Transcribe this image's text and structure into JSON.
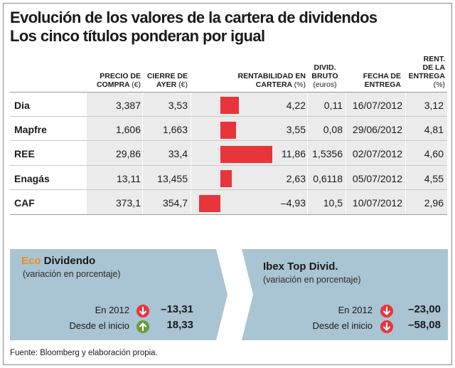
{
  "title_line1": "Evolución de los valores de la cartera de dividendos",
  "title_line2": "Los cinco títulos ponderan por igual",
  "headers": {
    "precio_line1": "PRECIO DE",
    "precio_line2": "COMPRA",
    "precio_unit": "(€)",
    "cierre_line1": "CIERRE DE",
    "cierre_line2": "AYER",
    "cierre_unit": "(€)",
    "rent_line1": "RENTABILIDAD EN",
    "rent_line2": "CARTERA",
    "rent_unit": "(%)",
    "divid_line1": "DIVID.",
    "divid_line2": "BRUTO",
    "divid_unit": "(euros)",
    "fecha_line1": "FECHA DE",
    "fecha_line2": "ENTREGA",
    "rentent_line1": "RENT.",
    "rentent_line2": "DE LA",
    "rentent_line3": "ENTREGA",
    "rentent_unit": "(%)"
  },
  "rows": [
    {
      "name": "Dia",
      "precio": "3,387",
      "cierre": "3,53",
      "rent": "4,22",
      "divid": "0,11",
      "fecha": "16/07/2012",
      "rentent": "3,12"
    },
    {
      "name": "Mapfre",
      "precio": "1,606",
      "cierre": "1,663",
      "rent": "3,55",
      "divid": "0,08",
      "fecha": "29/06/2012",
      "rentent": "4,81"
    },
    {
      "name": "REE",
      "precio": "29,86",
      "cierre": "33,4",
      "rent": "11,86",
      "divid": "1,5356",
      "fecha": "02/07/2012",
      "rentent": "4,60"
    },
    {
      "name": "Enagás",
      "precio": "13,11",
      "cierre": "13,455",
      "rent": "2,63",
      "divid": "0,6118",
      "fecha": "05/07/2012",
      "rentent": "4,55"
    },
    {
      "name": "CAF",
      "precio": "373,1",
      "cierre": "354,7",
      "rent": "–4,93",
      "divid": "10,5",
      "fecha": "10/07/2012",
      "rentent": "2,96"
    }
  ],
  "chart_data": {
    "type": "bar",
    "categories": [
      "Dia",
      "Mapfre",
      "REE",
      "Enagás",
      "CAF"
    ],
    "values": [
      4.22,
      3.55,
      11.86,
      2.63,
      -4.93
    ],
    "ylabel": "RENTABILIDAD EN CARTERA (%)",
    "color": "#e8343b"
  },
  "panel_left": {
    "title_eco": "Eco",
    "title_rest": " Dividendo",
    "subtitle": "(variación en porcentaje)",
    "row1_label": "En 2012",
    "row1_value": "–13,31",
    "row1_dir": "down",
    "row2_label": "Desde el inicio",
    "row2_value": "18,33",
    "row2_dir": "up"
  },
  "panel_right": {
    "title": "Ibex Top Divid.",
    "subtitle": "(variación en porcentaje)",
    "row1_label": "En 2012",
    "row1_value": "–23,00",
    "row1_dir": "down",
    "row2_label": "Desde el inicio",
    "row2_value": "–58,08",
    "row2_dir": "down"
  },
  "source": "Fuente: Bloomberg y elaboración propia.",
  "colors": {
    "accent_orange": "#f08a24",
    "bar_red": "#e8343b",
    "panel_blue": "#a9c4d3",
    "arrow_up": "#6a9a3a",
    "arrow_down": "#e8343b"
  }
}
